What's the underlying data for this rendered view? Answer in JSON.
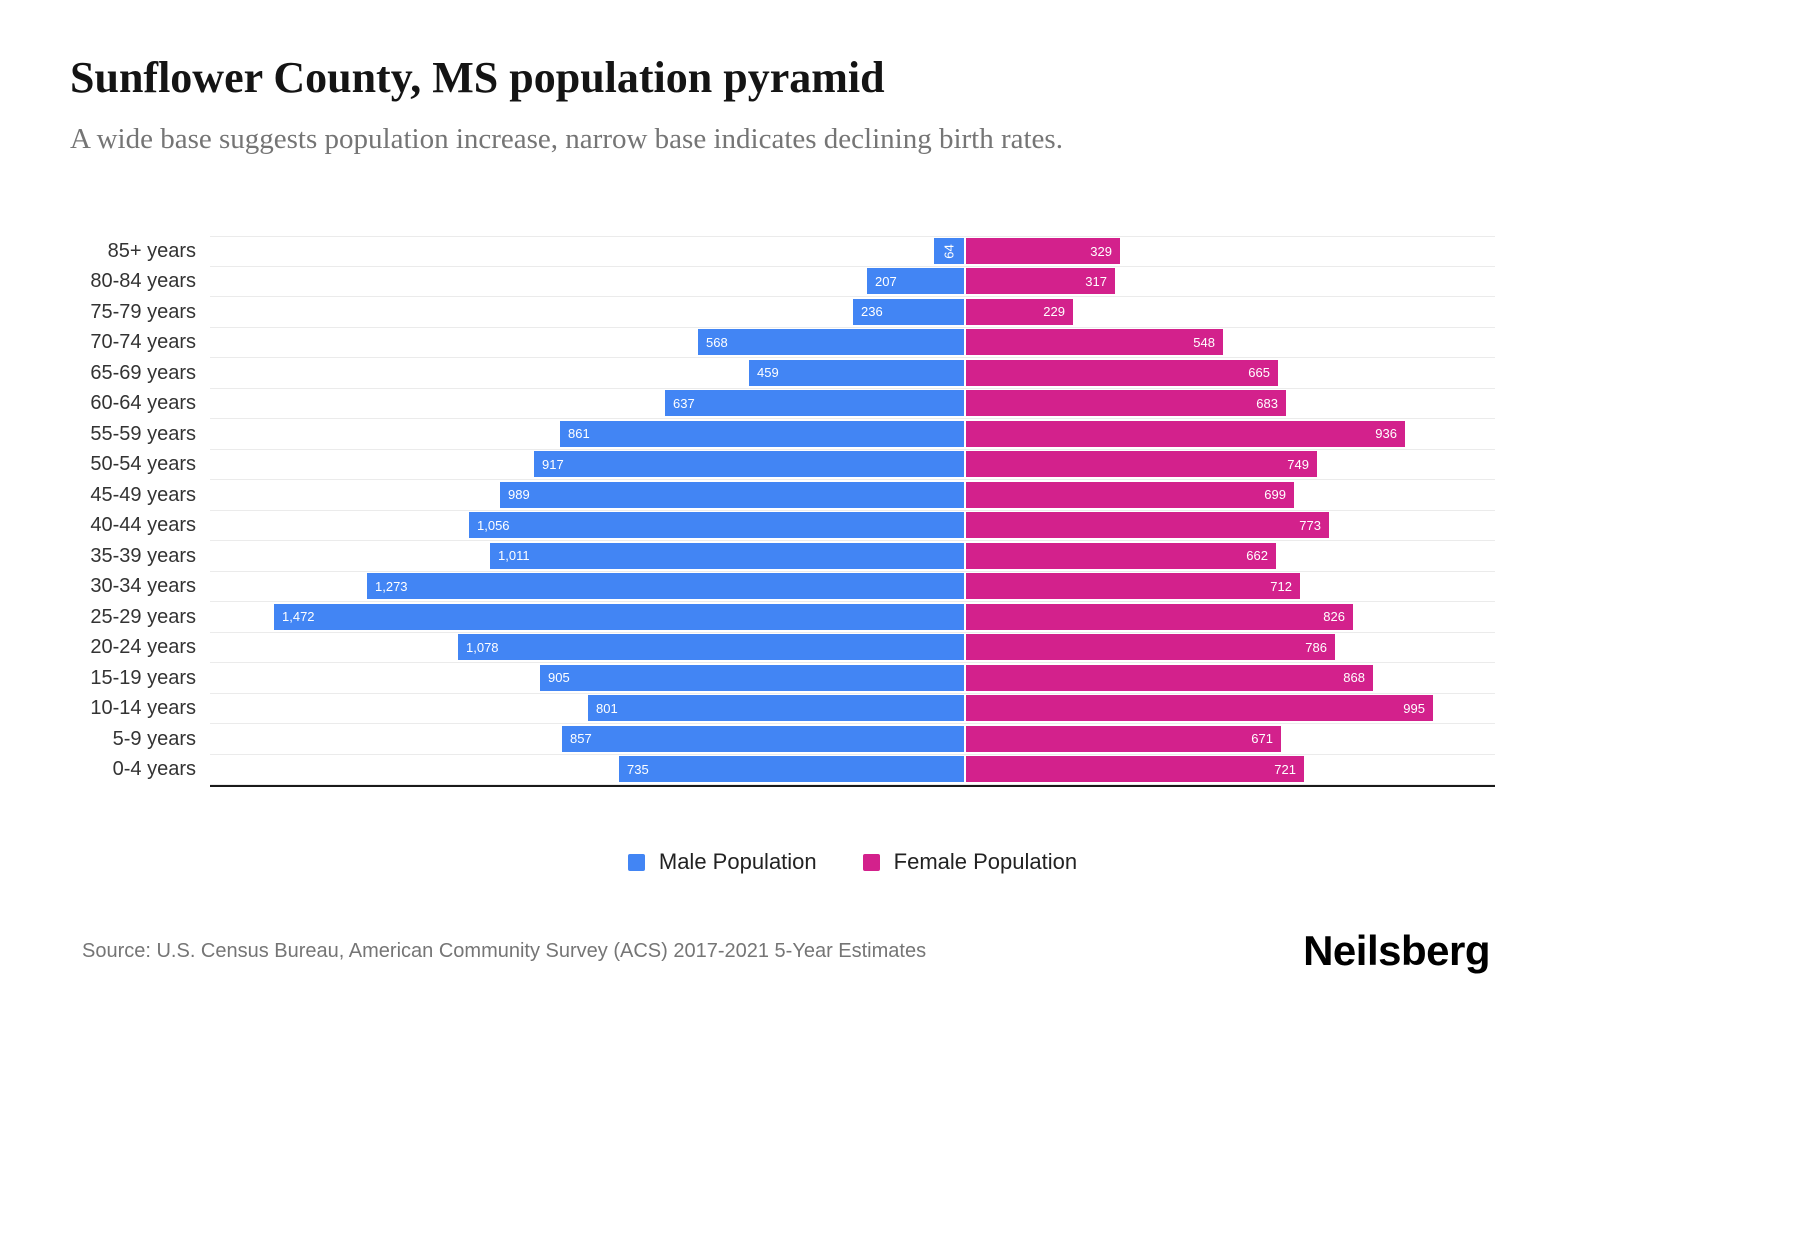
{
  "header": {
    "title": "Sunflower County, MS population pyramid",
    "subtitle": "A wide base suggests population increase, narrow base indicates declining birth rates."
  },
  "chart_data": {
    "type": "bar",
    "variant": "population-pyramid",
    "orientation": "horizontal",
    "title": "Sunflower County, MS population pyramid",
    "legend_position": "bottom",
    "grid": true,
    "categories": [
      "85+ years",
      "80-84 years",
      "75-79 years",
      "70-74 years",
      "65-69 years",
      "60-64 years",
      "55-59 years",
      "50-54 years",
      "45-49 years",
      "40-44 years",
      "35-39 years",
      "30-34 years",
      "25-29 years",
      "20-24 years",
      "15-19 years",
      "10-14 years",
      "5-9 years",
      "0-4 years"
    ],
    "series": [
      {
        "name": "Male Population",
        "color": "#4285f4",
        "direction": "left",
        "values": [
          64,
          207,
          236,
          568,
          459,
          637,
          861,
          917,
          989,
          1056,
          1011,
          1273,
          1472,
          1078,
          905,
          801,
          857,
          735
        ]
      },
      {
        "name": "Female Population",
        "color": "#d3218c",
        "direction": "right",
        "values": [
          329,
          317,
          229,
          548,
          665,
          683,
          936,
          749,
          699,
          773,
          662,
          712,
          826,
          786,
          868,
          995,
          671,
          721
        ]
      }
    ]
  },
  "legend": [
    {
      "label": "Male Population",
      "color": "#4285f4"
    },
    {
      "label": "Female Population",
      "color": "#d3218c"
    }
  ],
  "footer": {
    "source": "Source: U.S. Census Bureau, American Community Survey (ACS) 2017-2021 5-Year Estimates",
    "brand": "Neilsberg"
  }
}
